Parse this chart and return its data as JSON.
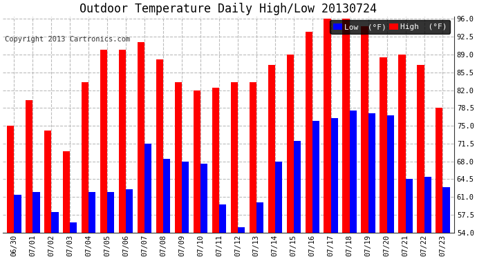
{
  "title": "Outdoor Temperature Daily High/Low 20130724",
  "copyright": "Copyright 2013 Cartronics.com",
  "legend_low": "Low  (°F)",
  "legend_high": "High  (°F)",
  "dates": [
    "06/30",
    "07/01",
    "07/02",
    "07/03",
    "07/04",
    "07/05",
    "07/06",
    "07/07",
    "07/08",
    "07/09",
    "07/10",
    "07/11",
    "07/12",
    "07/13",
    "07/14",
    "07/15",
    "07/16",
    "07/17",
    "07/18",
    "07/19",
    "07/20",
    "07/21",
    "07/22",
    "07/23"
  ],
  "highs": [
    75.0,
    80.0,
    74.0,
    70.0,
    83.5,
    90.0,
    90.0,
    91.5,
    88.0,
    83.5,
    82.0,
    82.5,
    83.5,
    83.5,
    87.0,
    89.0,
    93.5,
    96.0,
    96.0,
    94.5,
    88.5,
    89.0,
    87.0,
    78.5
  ],
  "lows": [
    61.5,
    62.0,
    58.0,
    56.0,
    62.0,
    62.0,
    62.5,
    71.5,
    68.5,
    68.0,
    67.5,
    59.5,
    55.0,
    60.0,
    68.0,
    72.0,
    76.0,
    76.5,
    78.0,
    77.5,
    77.0,
    64.5,
    65.0,
    63.0
  ],
  "ylim": [
    54.0,
    96.0
  ],
  "yticks": [
    54.0,
    57.5,
    61.0,
    64.5,
    68.0,
    71.5,
    75.0,
    78.5,
    82.0,
    85.5,
    89.0,
    92.5,
    96.0
  ],
  "bar_width": 0.38,
  "high_color": "#ff0000",
  "low_color": "#0000ff",
  "background_color": "#ffffff",
  "grid_color": "#bbbbbb",
  "title_fontsize": 12,
  "copyright_fontsize": 7.5,
  "tick_fontsize": 7.5,
  "legend_fontsize": 8
}
